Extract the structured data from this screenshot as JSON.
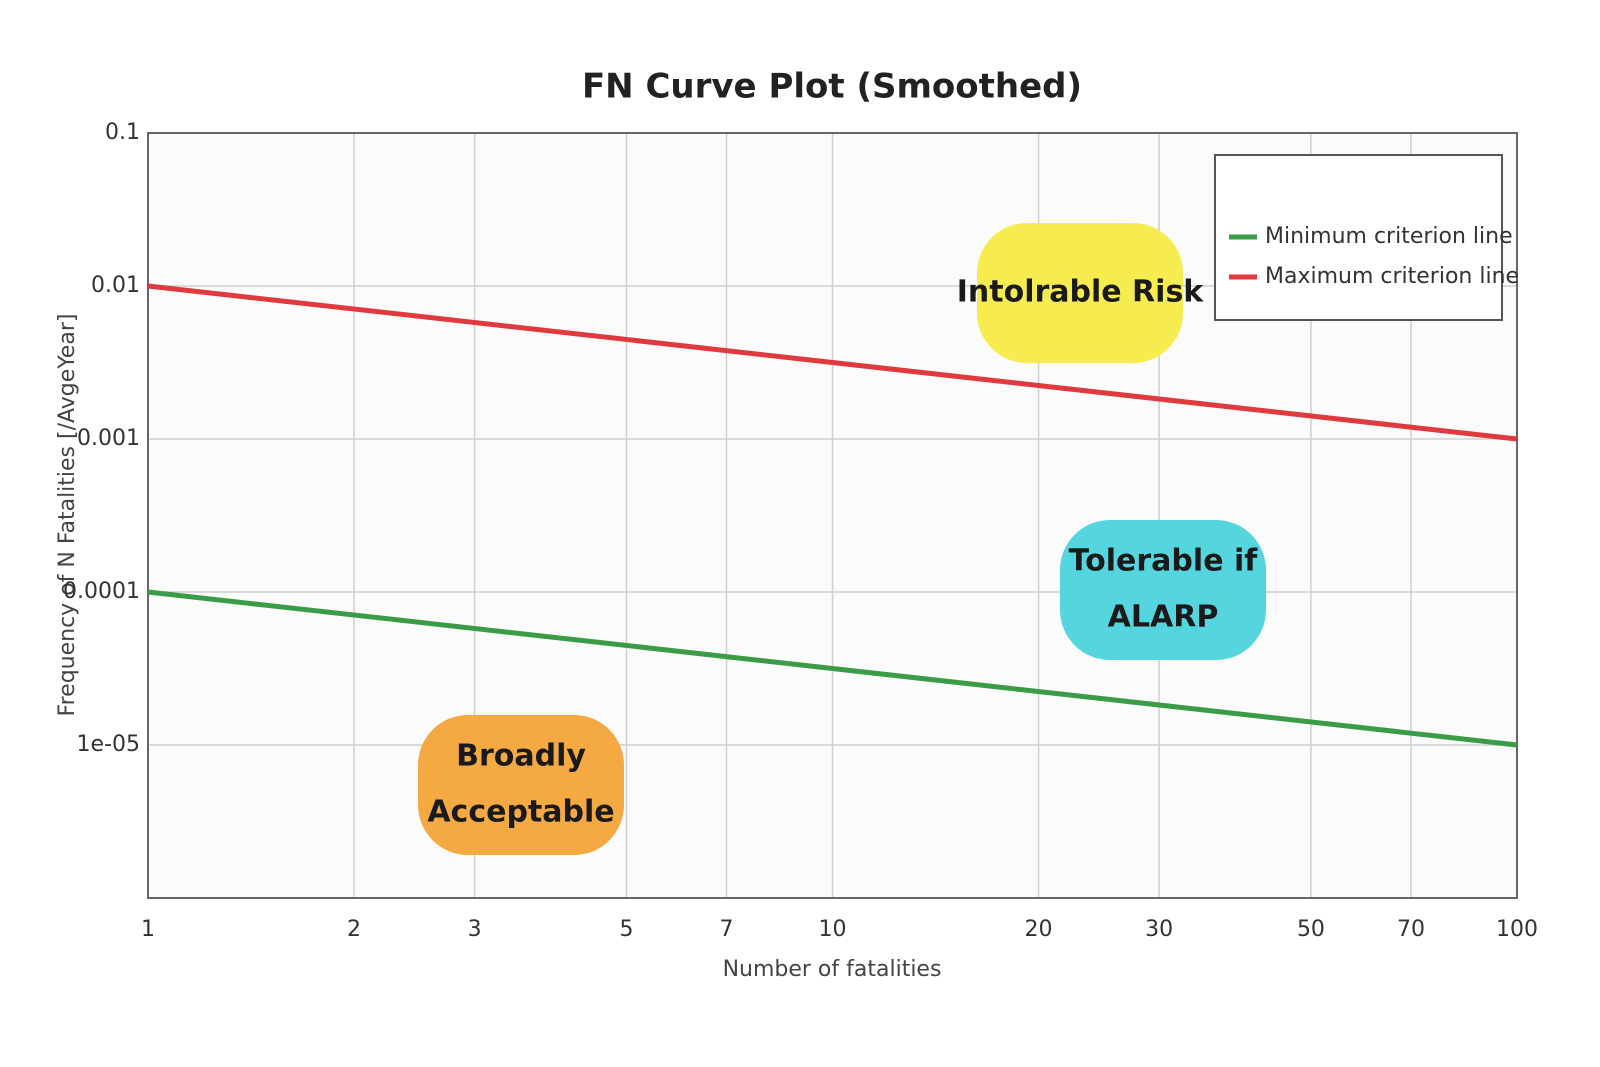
{
  "chart_data": {
    "type": "line",
    "title": "FN Curve Plot (Smoothed)",
    "x_label": "Number of fatalities",
    "y_label": "Frequency of N Fatalities [/AvgeYear]",
    "x": [
      1,
      100
    ],
    "series": [
      {
        "name": "Minimum criterion line",
        "color": "#3a9c47",
        "values": [
          0.0001,
          1e-05
        ]
      },
      {
        "name": "Maximum criterion line",
        "color": "#e0393e",
        "values": [
          0.01,
          0.001
        ]
      }
    ],
    "xlim": [
      1,
      100
    ],
    "ylim": [
      1e-06,
      0.1
    ],
    "xticks": [
      1,
      2,
      3,
      5,
      7,
      10,
      20,
      30,
      50,
      70,
      100
    ],
    "yticks": [
      0.1,
      0.01,
      0.001,
      0.0001,
      {
        "value": 1e-05,
        "label": "1e-05"
      }
    ],
    "log_x": true,
    "log_y": true,
    "grid": true,
    "legend": "upper right",
    "annotations": [
      {
        "lines": [
          "Intolrable Risk"
        ],
        "color": "#f7ec4f"
      },
      {
        "lines": [
          "Tolerable if",
          "ALARP"
        ],
        "color": "#55d6de"
      },
      {
        "lines": [
          "Broadly",
          "Acceptable"
        ],
        "color": "#f4a942"
      }
    ]
  }
}
